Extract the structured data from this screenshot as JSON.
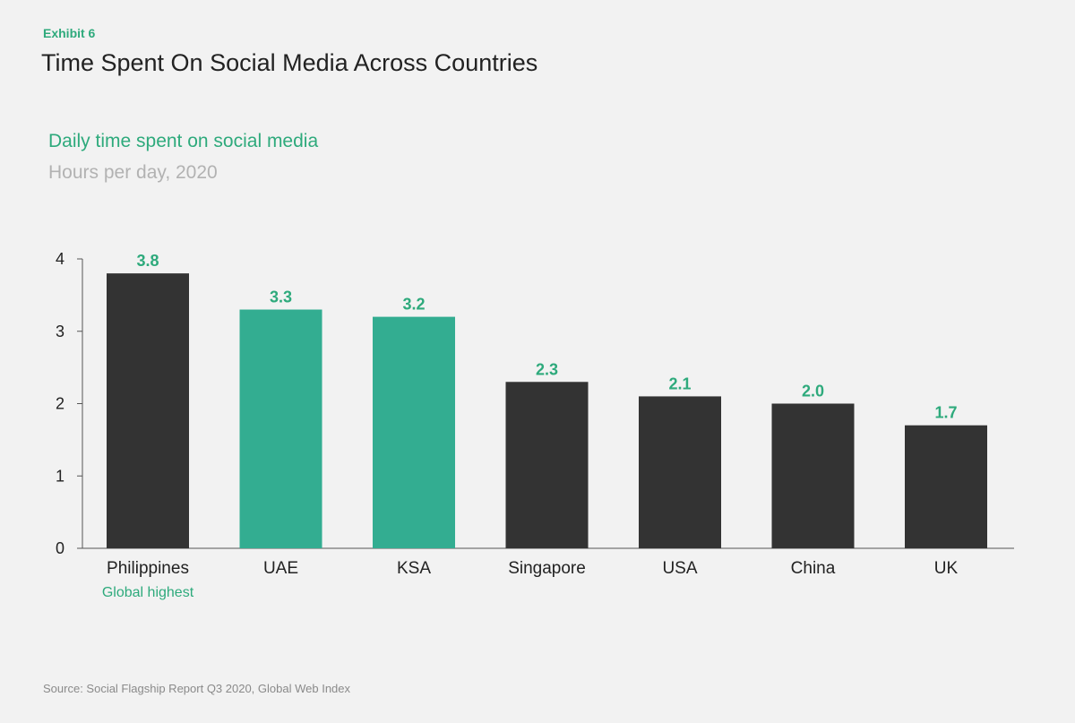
{
  "exhibit_label": "Exhibit 6",
  "title": "Time Spent On Social Media Across Countries",
  "source": "Source: Social Flagship Report Q3 2020, Global Web Index",
  "colors": {
    "dark": "#333333",
    "accent": "#33ad91",
    "accent_text": "#2eaa7c"
  },
  "chart_data": {
    "type": "bar",
    "title": "Daily time spent on social media",
    "ylabel": "Hours per day, 2020",
    "xlabel": "",
    "categories": [
      "Philippines",
      "UAE",
      "KSA",
      "Singapore",
      "USA",
      "China",
      "UK"
    ],
    "values": [
      3.8,
      3.3,
      3.2,
      2.3,
      2.1,
      2.0,
      1.7
    ],
    "value_labels": [
      "3.8",
      "3.3",
      "3.2",
      "2.3",
      "2.1",
      "2.0",
      "1.7"
    ],
    "highlighted": [
      false,
      true,
      true,
      false,
      false,
      false,
      false
    ],
    "ylim": [
      0,
      4
    ],
    "yticks": [
      0,
      1,
      2,
      3,
      4
    ],
    "grid": false,
    "annotations": [
      {
        "category": "Philippines",
        "text": "Global highest"
      }
    ]
  }
}
